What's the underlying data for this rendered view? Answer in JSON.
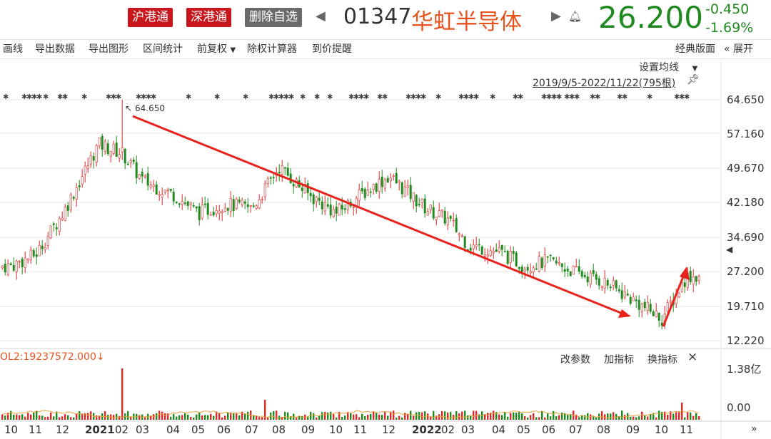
{
  "header": {
    "badges": [
      "沪港通",
      "深港通",
      "删除自选"
    ],
    "code": "01347",
    "name": "华虹半导体",
    "price": "26.200",
    "change": "-0.450",
    "change_pct": "-1.69%"
  },
  "toolbar": {
    "left": [
      "画线",
      "导出数据",
      "导出图形",
      "区间统计",
      "前复权",
      "除权计算器",
      "到价提醒"
    ],
    "right_classic": "经典版面",
    "right_expand": "展开"
  },
  "chart": {
    "ma_setting": "设置均线",
    "range": "2019/9/5-2022/11/22(795根)",
    "high_label": "64.650",
    "y_labels": [
      "64.650",
      "57.160",
      "49.670",
      "42.180",
      "34.690",
      "27.200",
      "19.710",
      "12.220"
    ],
    "vol_label": "OL2:19237572.000↓",
    "vol_buttons": [
      "改参数",
      "加指标",
      "换指标"
    ],
    "vol_close": "×",
    "vol_y": [
      "1.38亿",
      "0.00"
    ],
    "x_labels": [
      "10",
      "11",
      "12",
      "2021",
      "02",
      "03",
      "04",
      "05",
      "06",
      "07",
      "08",
      "09",
      "10",
      "11",
      "12",
      "2022",
      "02",
      "03",
      "04",
      "05",
      "06",
      "07",
      "08",
      "09",
      "10",
      "11"
    ],
    "x_scroll": "»",
    "colors": {
      "up": "#d92b2b",
      "down": "#1f8a1f",
      "trend": "#e8221d"
    }
  },
  "chart_data": {
    "type": "candlestick",
    "x": [
      "2020-10",
      "2020-11",
      "2020-12",
      "2021-01",
      "2021-02",
      "2021-03",
      "2021-04",
      "2021-05",
      "2021-06",
      "2021-07",
      "2021-08",
      "2021-09",
      "2021-10",
      "2021-11",
      "2021-12",
      "2022-01",
      "2022-02",
      "2022-03",
      "2022-04",
      "2022-05",
      "2022-06",
      "2022-07",
      "2022-08",
      "2022-09",
      "2022-10",
      "2022-11"
    ],
    "close": [
      28.5,
      31.0,
      40.0,
      55.0,
      53.0,
      47.0,
      44.0,
      40.0,
      42.0,
      41.0,
      50.0,
      44.0,
      40.0,
      44.0,
      48.0,
      41.0,
      38.5,
      33.0,
      31.5,
      28.5,
      29.5,
      27.0,
      25.0,
      21.0,
      17.0,
      26.2
    ],
    "high": 64.65,
    "ylim": [
      12.22,
      64.65
    ]
  }
}
